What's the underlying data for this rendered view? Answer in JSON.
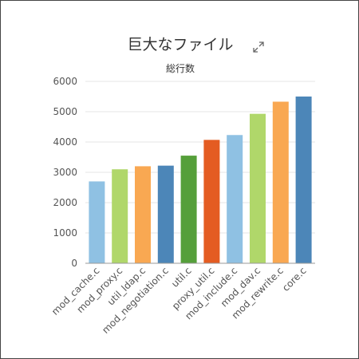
{
  "chart_data": {
    "type": "bar",
    "title": "巨大なファイル",
    "ylabel": "総行数",
    "xlabel": "",
    "ylim": [
      0,
      6000
    ],
    "yticks": [
      0,
      1000,
      2000,
      3000,
      4000,
      5000,
      6000
    ],
    "grid": true,
    "categories": [
      "mod_cache.c",
      "mod_proxy.c",
      "util_ldap.c",
      "mod_negotiation.c",
      "util.c",
      "proxy_util.c",
      "mod_include.c",
      "mod_dav.c",
      "mod_rewrite.c",
      "core.c"
    ],
    "values": [
      2700,
      3100,
      3200,
      3220,
      3550,
      4070,
      4230,
      4930,
      5330,
      5500
    ],
    "colors": [
      "#8fc1e3",
      "#b0d76a",
      "#f9a852",
      "#4c86b8",
      "#559f3a",
      "#e45c22",
      "#8fc1e3",
      "#b0d76a",
      "#f9a852",
      "#4c86b8"
    ]
  },
  "icons": {
    "expand": "expand-icon"
  }
}
